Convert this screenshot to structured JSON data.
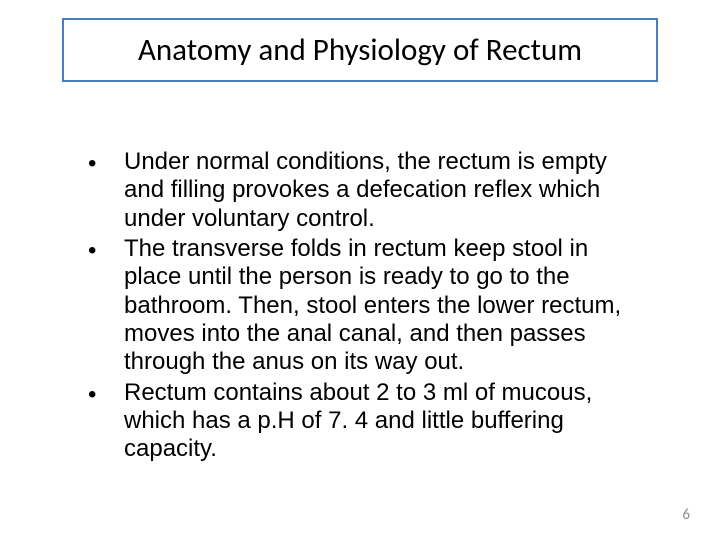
{
  "title": {
    "text": "Anatomy and Physiology of Rectum",
    "border_color": "#4a7ebb",
    "font_color": "#000000",
    "font_size": 31,
    "font_family": "Calibri"
  },
  "bullets": [
    {
      "text": "Under normal conditions, the rectum is empty and filling provokes a defecation reflex which under voluntary control."
    },
    {
      "text": "The transverse folds in rectum keep stool in place until the person is ready to go to the bathroom. Then, stool enters the lower rectum, moves into the anal canal, and then passes through the anus on its way out."
    },
    {
      "text": "Rectum contains about 2 to 3 ml of mucous, which has a p.H of 7. 4 and little buffering capacity."
    }
  ],
  "bullet_style": {
    "marker": "•",
    "font_size": 24,
    "font_color": "#000000",
    "font_family": "Arial"
  },
  "page_number": "6",
  "page_number_color": "#8c8c8c",
  "background_color": "#ffffff"
}
